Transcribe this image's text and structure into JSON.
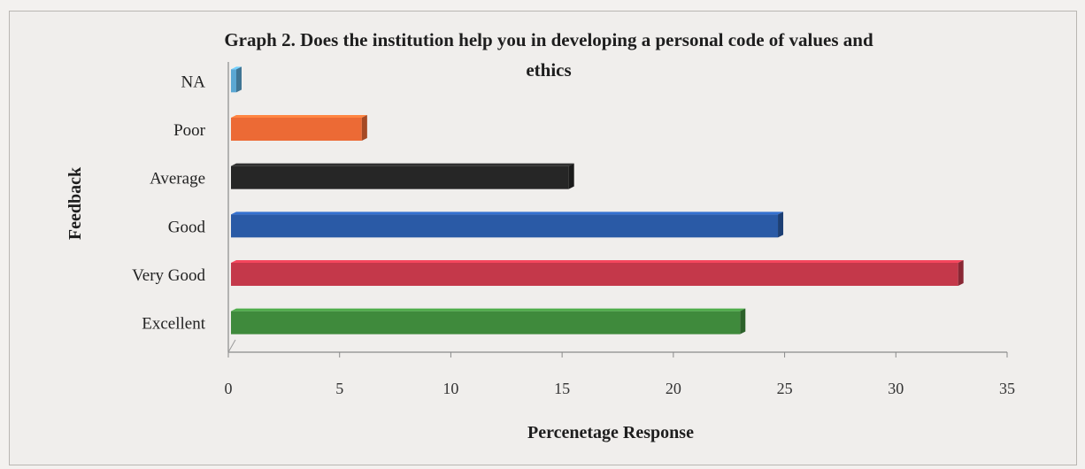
{
  "chart_data": {
    "type": "bar",
    "orientation": "horizontal",
    "title_line1": "Graph 2. Does the institution help you in developing a personal code of values and",
    "title_line2": "ethics",
    "xlabel": "Percenetage Response",
    "ylabel": "Feedback",
    "categories": [
      "Excellent",
      "Very Good",
      "Good",
      "Average",
      "Poor",
      "NA"
    ],
    "values": [
      23,
      32.8,
      24.7,
      15.3,
      6,
      0.3
    ],
    "colors": [
      "#3f8a3c",
      "#c4384a",
      "#2a5aa6",
      "#262626",
      "#ec6a35",
      "#5ba7d3"
    ],
    "xlim": [
      0,
      35
    ],
    "xticks": [
      "0",
      "5",
      "10",
      "15",
      "20",
      "25",
      "30",
      "35"
    ],
    "grid": false,
    "legend": "none"
  }
}
